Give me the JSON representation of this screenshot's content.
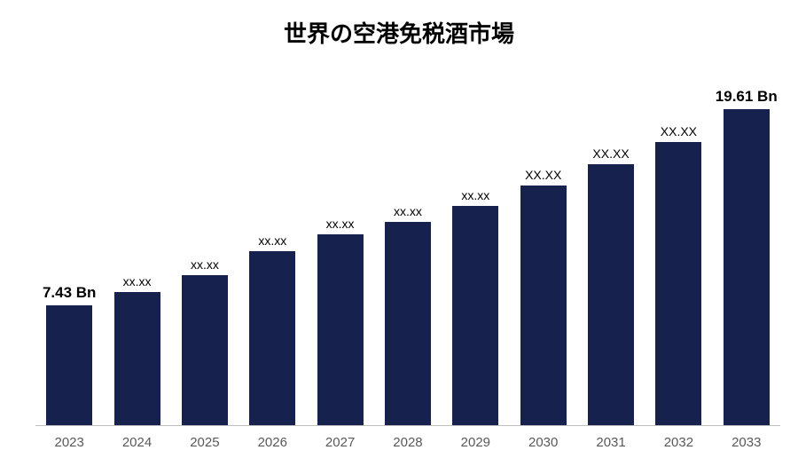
{
  "chart": {
    "type": "bar",
    "title": "世界の空港免税酒市場",
    "title_fontsize": 26,
    "title_fontweight": "bold",
    "title_color": "#000000",
    "background_color": "#ffffff",
    "bar_color": "#16224d",
    "axis_line_color": "#bfbfbf",
    "x_tick_color": "#595959",
    "x_tick_fontsize": 15,
    "label_fontsize_small": 14,
    "label_fontsize_large": 17,
    "label_fontweight_large": "bold",
    "label_color": "#000000",
    "y_max": 21.5,
    "bar_width_ratio": 0.68,
    "categories": [
      "2023",
      "2024",
      "2025",
      "2026",
      "2027",
      "2028",
      "2029",
      "2030",
      "2031",
      "2032",
      "2033"
    ],
    "values": [
      7.43,
      8.25,
      9.3,
      10.8,
      11.85,
      12.6,
      13.6,
      14.9,
      16.2,
      17.6,
      19.61
    ],
    "value_labels": [
      "7.43 Bn",
      "xx.xx",
      "xx.xx",
      "xx.xx",
      "xx.xx",
      "xx.xx",
      "xx.xx",
      "XX.XX",
      "XX.XX",
      "XX.XX",
      "19.61 Bn"
    ],
    "emphasized_indices": [
      0,
      10
    ]
  }
}
